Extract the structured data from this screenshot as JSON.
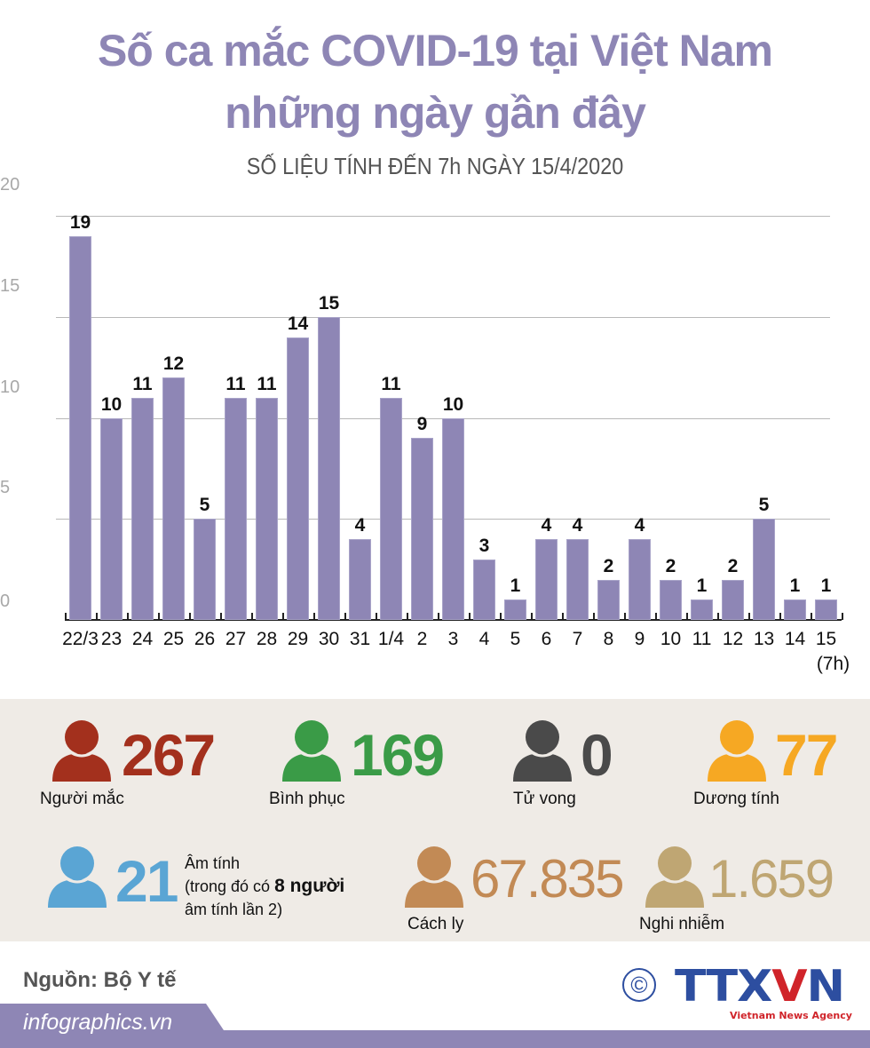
{
  "header": {
    "title_line1": "Số ca mắc COVID-19 tại Việt Nam",
    "title_line2": "những ngày gần đây",
    "subtitle": "SỐ LIỆU TÍNH ĐẾN 7h NGÀY 15/4/2020"
  },
  "chart_data": {
    "type": "bar",
    "title": "Số ca mắc COVID-19 tại Việt Nam những ngày gần đây",
    "subtitle": "SỐ LIỆU TÍNH ĐẾN 7h NGÀY 15/4/2020",
    "xlabel": "",
    "ylabel": "",
    "ylim": [
      0,
      20
    ],
    "yticks": [
      0,
      5,
      10,
      15,
      20
    ],
    "grid": true,
    "categories": [
      "22/3",
      "23",
      "24",
      "25",
      "26",
      "27",
      "28",
      "29",
      "30",
      "31",
      "1/4",
      "2",
      "3",
      "4",
      "5",
      "6",
      "7",
      "8",
      "9",
      "10",
      "11",
      "12",
      "13",
      "14",
      "15 (7h)"
    ],
    "values": [
      19,
      10,
      11,
      12,
      5,
      11,
      11,
      14,
      15,
      4,
      11,
      9,
      10,
      3,
      1,
      4,
      4,
      2,
      4,
      2,
      1,
      2,
      5,
      1,
      1
    ],
    "bar_color": "#8e86b5",
    "last_label_note": "(7h)"
  },
  "stats": {
    "infected": {
      "value": "267",
      "label": "Người mắc",
      "color": "#a3301d"
    },
    "recovered": {
      "value": "169",
      "label": "Bình phục",
      "color": "#3a9b47"
    },
    "deaths": {
      "value": "0",
      "label": "Tử vong",
      "color": "#4a4a4a"
    },
    "positive": {
      "value": "77",
      "label": "Dương tính",
      "color": "#f6a823"
    },
    "negative": {
      "value": "21",
      "label": "Âm tính",
      "note_prefix": "(trong đó có ",
      "note_bold": "8 người",
      "note_suffix": "âm tính lần 2)",
      "color": "#5aa5d4"
    },
    "quarantine": {
      "value": "67.835",
      "label": "Cách ly",
      "color": "#c28a55"
    },
    "suspected": {
      "value": "1.659",
      "label": "Nghi nhiễm",
      "color": "#bfa673"
    }
  },
  "footer": {
    "source": "Nguồn: Bộ Y tế",
    "site": "infographics.vn",
    "copyright_symbol": "©",
    "logo_main_a": "TTX",
    "logo_main_b": "V",
    "logo_main_c": "N",
    "logo_sub": "Vietnam News Agency"
  }
}
